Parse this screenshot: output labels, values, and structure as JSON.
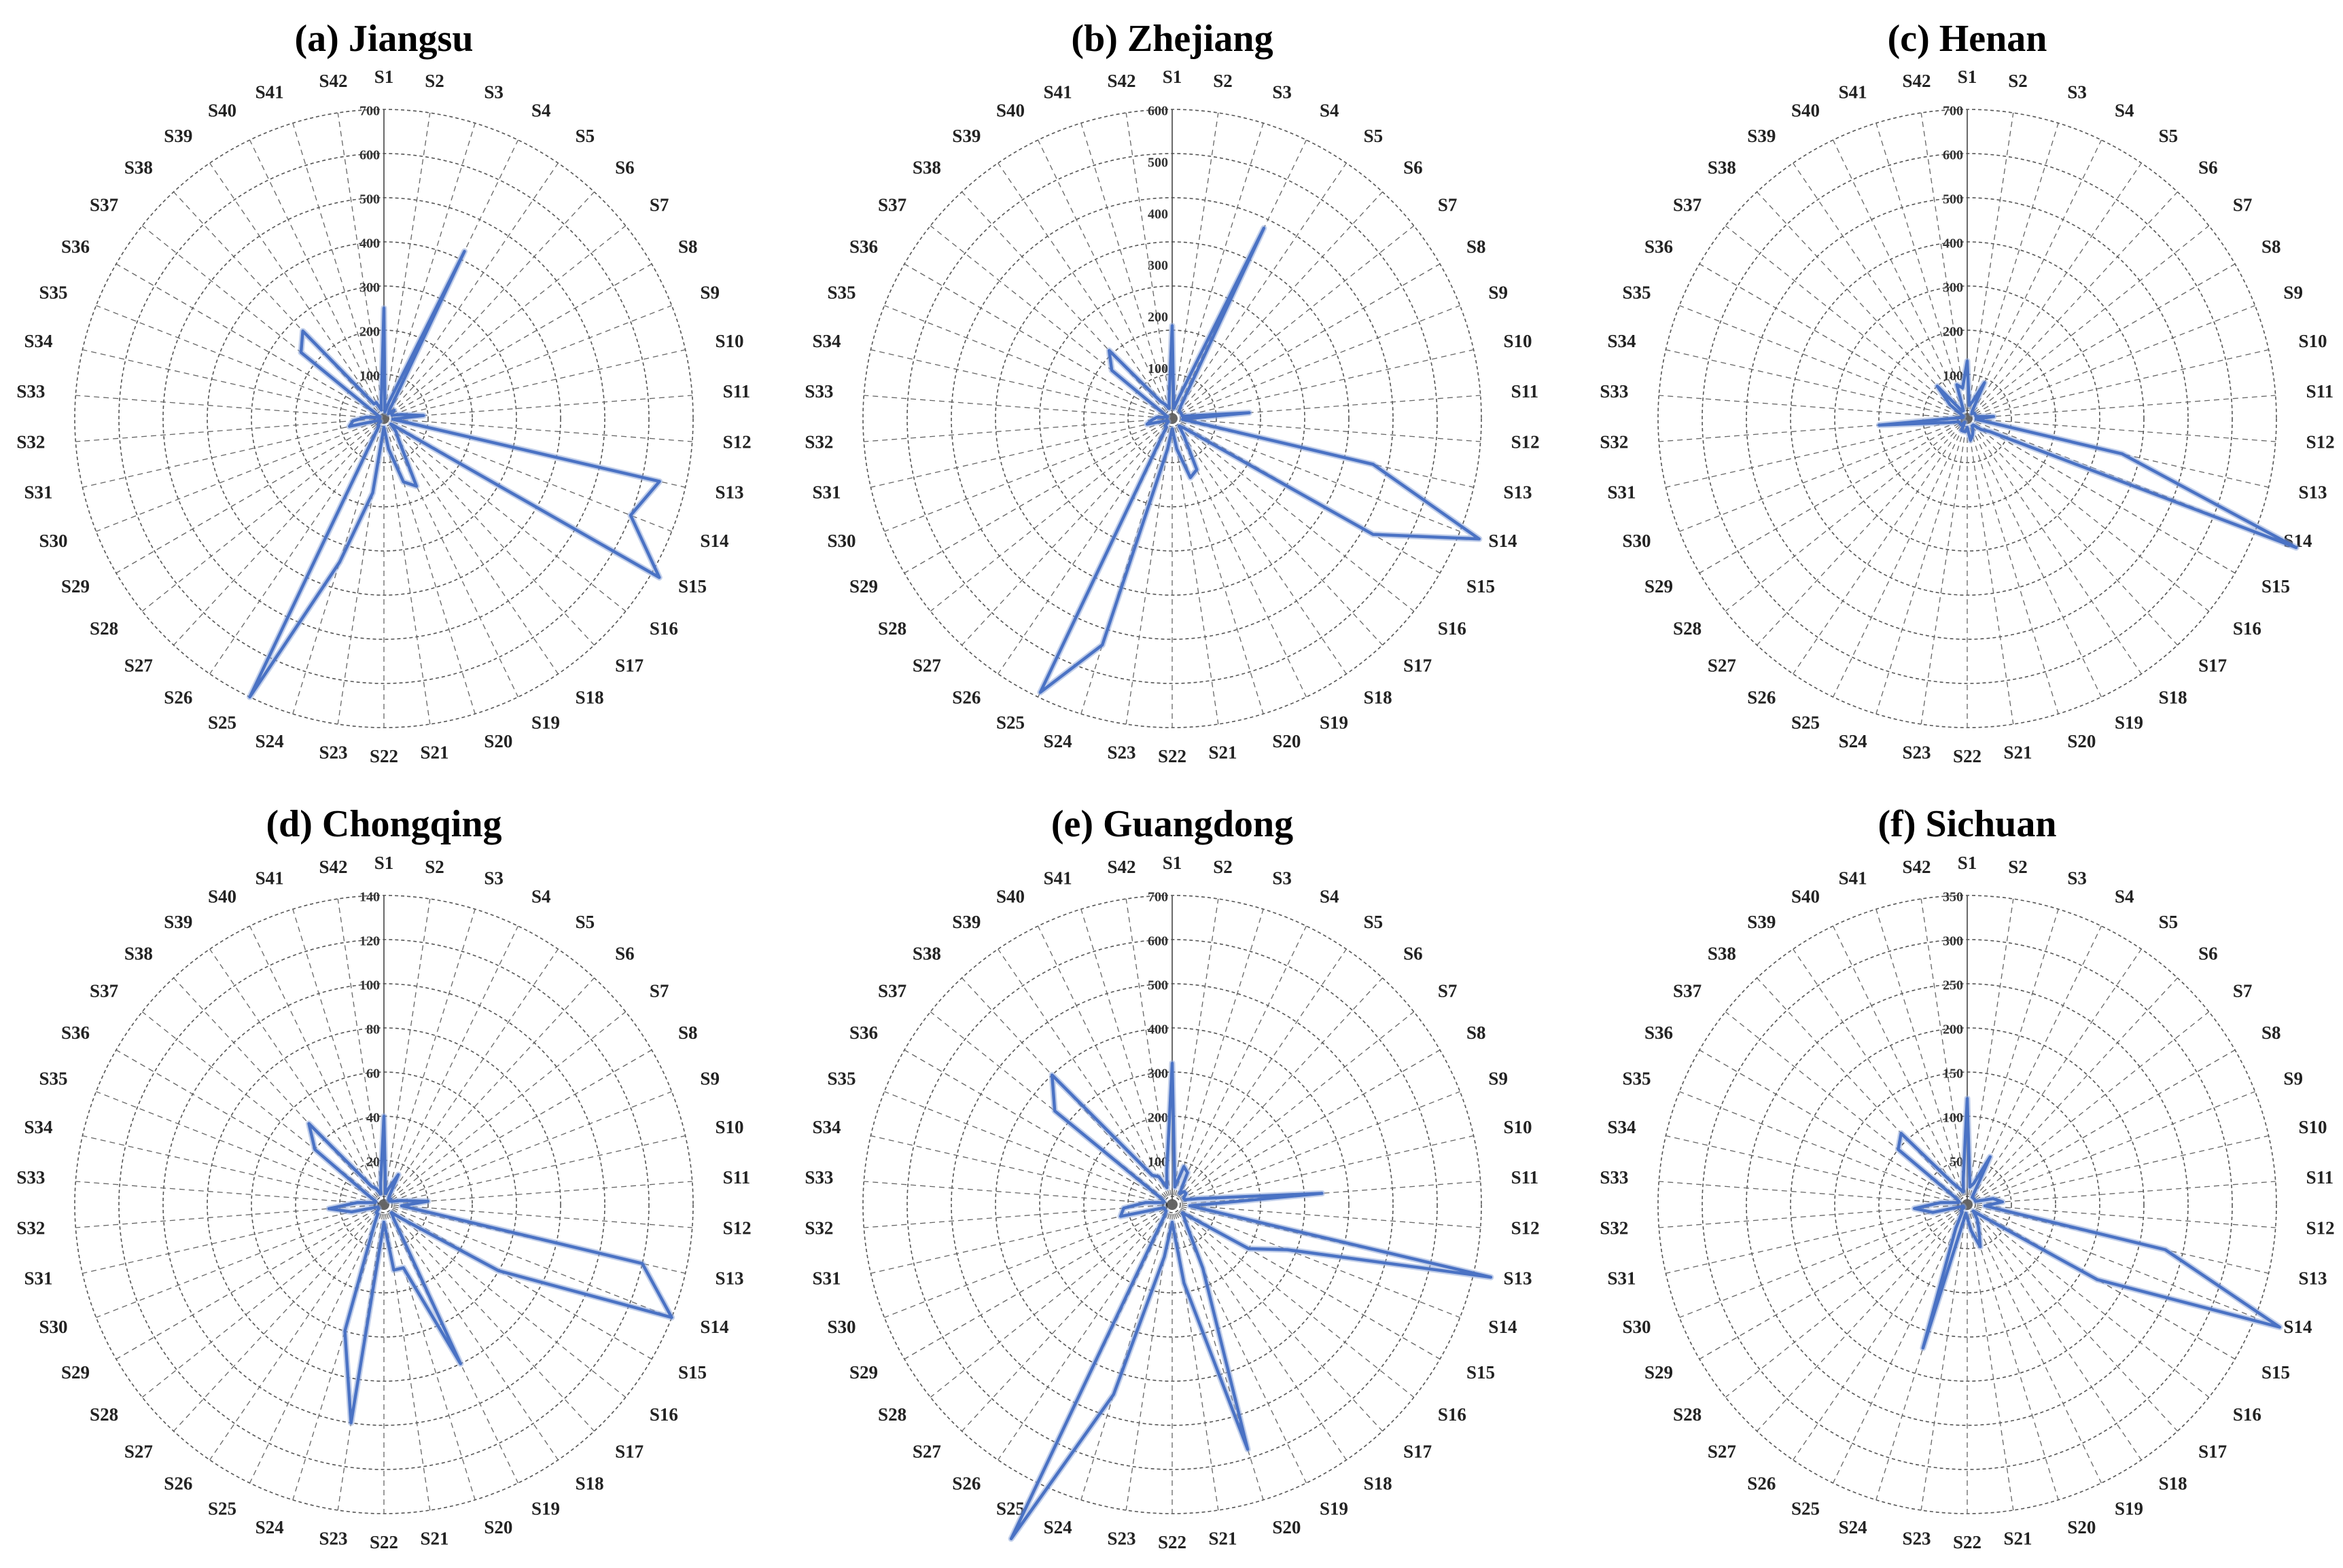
{
  "chart_data": [
    {
      "type": "radar",
      "title": "(a) Jiangsu",
      "categories": [
        "S1",
        "S2",
        "S3",
        "S4",
        "S5",
        "S6",
        "S7",
        "S8",
        "S9",
        "S10",
        "S11",
        "S12",
        "S13",
        "S14",
        "S15",
        "S16",
        "S17",
        "S18",
        "S19",
        "S20",
        "S21",
        "S22",
        "S23",
        "S24",
        "S25",
        "S26",
        "S27",
        "S28",
        "S29",
        "S30",
        "S31",
        "S32",
        "S33",
        "S34",
        "S35",
        "S36",
        "S37",
        "S38",
        "S39",
        "S40",
        "S41",
        "S42"
      ],
      "rlim": [
        0,
        700
      ],
      "ticks": [
        0,
        100,
        200,
        300,
        400,
        500,
        600,
        700
      ],
      "values": [
        250,
        15,
        40,
        420,
        20,
        15,
        30,
        20,
        20,
        40,
        90,
        20,
        640,
        600,
        720,
        20,
        40,
        60,
        170,
        150,
        70,
        20,
        170,
        340,
        700,
        20,
        20,
        10,
        10,
        10,
        80,
        70,
        40,
        10,
        10,
        20,
        240,
        270,
        40,
        40,
        20,
        40
      ]
    },
    {
      "type": "radar",
      "title": "(b) Zhejiang",
      "categories": [
        "S1",
        "S2",
        "S3",
        "S4",
        "S5",
        "S6",
        "S7",
        "S8",
        "S9",
        "S10",
        "S11",
        "S12",
        "S13",
        "S14",
        "S15",
        "S16",
        "S17",
        "S18",
        "S19",
        "S20",
        "S21",
        "S22",
        "S23",
        "S24",
        "S25",
        "S26",
        "S27",
        "S28",
        "S29",
        "S30",
        "S31",
        "S32",
        "S33",
        "S34",
        "S35",
        "S36",
        "S37",
        "S38",
        "S39",
        "S40",
        "S41",
        "S42"
      ],
      "rlim": [
        0,
        600
      ],
      "ticks": [
        0,
        100,
        200,
        300,
        400,
        500,
        600
      ],
      "values": [
        180,
        20,
        40,
        410,
        30,
        20,
        20,
        20,
        20,
        20,
        150,
        20,
        400,
        640,
        450,
        30,
        20,
        40,
        110,
        120,
        60,
        20,
        60,
        460,
        590,
        20,
        20,
        10,
        10,
        10,
        50,
        40,
        30,
        10,
        10,
        20,
        150,
        180,
        40,
        30,
        20,
        40
      ]
    },
    {
      "type": "radar",
      "title": "(c) Henan",
      "categories": [
        "S1",
        "S2",
        "S3",
        "S4",
        "S5",
        "S6",
        "S7",
        "S8",
        "S9",
        "S10",
        "S11",
        "S12",
        "S13",
        "S14",
        "S15",
        "S16",
        "S17",
        "S18",
        "S19",
        "S20",
        "S21",
        "S22",
        "S23",
        "S24",
        "S25",
        "S26",
        "S27",
        "S28",
        "S29",
        "S30",
        "S31",
        "S32",
        "S33",
        "S34",
        "S35",
        "S36",
        "S37",
        "S38",
        "S39",
        "S40",
        "S41",
        "S42"
      ],
      "rlim": [
        0,
        700
      ],
      "ticks": [
        0,
        100,
        200,
        300,
        400,
        500,
        600,
        700
      ],
      "values": [
        130,
        30,
        40,
        90,
        20,
        15,
        20,
        20,
        20,
        20,
        60,
        20,
        360,
        800,
        60,
        40,
        20,
        20,
        30,
        40,
        50,
        20,
        30,
        30,
        30,
        10,
        20,
        20,
        20,
        20,
        40,
        200,
        20,
        10,
        10,
        10,
        50,
        100,
        20,
        20,
        80,
        70
      ]
    },
    {
      "type": "radar",
      "title": "(d) Chongqing",
      "categories": [
        "S1",
        "S2",
        "S3",
        "S4",
        "S5",
        "S6",
        "S7",
        "S8",
        "S9",
        "S10",
        "S11",
        "S12",
        "S13",
        "S14",
        "S15",
        "S16",
        "S17",
        "S18",
        "S19",
        "S20",
        "S21",
        "S22",
        "S23",
        "S24",
        "S25",
        "S26",
        "S27",
        "S28",
        "S29",
        "S30",
        "S31",
        "S32",
        "S33",
        "S34",
        "S35",
        "S36",
        "S37",
        "S38",
        "S39",
        "S40",
        "S41",
        "S42"
      ],
      "rlim": [
        0,
        140
      ],
      "ticks": [
        0,
        20,
        40,
        60,
        80,
        100,
        120,
        140
      ],
      "values": [
        40,
        5,
        8,
        15,
        4,
        3,
        4,
        3,
        4,
        8,
        20,
        8,
        120,
        140,
        60,
        10,
        5,
        8,
        80,
        30,
        30,
        8,
        100,
        60,
        10,
        5,
        5,
        3,
        3,
        3,
        15,
        25,
        12,
        4,
        4,
        8,
        40,
        50,
        10,
        8,
        5,
        10
      ]
    },
    {
      "type": "radar",
      "title": "(e) Guangdong",
      "categories": [
        "S1",
        "S2",
        "S3",
        "S4",
        "S5",
        "S6",
        "S7",
        "S8",
        "S9",
        "S10",
        "S11",
        "S12",
        "S13",
        "S14",
        "S15",
        "S16",
        "S17",
        "S18",
        "S19",
        "S20",
        "S21",
        "S22",
        "S23",
        "S24",
        "S25",
        "S26",
        "S27",
        "S28",
        "S29",
        "S30",
        "S31",
        "S32",
        "S33",
        "S34",
        "S35",
        "S36",
        "S37",
        "S38",
        "S39",
        "S40",
        "S41",
        "S42"
      ],
      "rlim": [
        0,
        700
      ],
      "ticks": [
        0,
        100,
        200,
        300,
        400,
        500,
        600,
        700
      ],
      "values": [
        320,
        40,
        90,
        80,
        30,
        40,
        40,
        30,
        30,
        60,
        340,
        40,
        740,
        280,
        200,
        30,
        40,
        60,
        160,
        580,
        180,
        40,
        120,
        450,
        840,
        30,
        20,
        20,
        20,
        20,
        120,
        110,
        60,
        20,
        20,
        30,
        340,
        400,
        80,
        70,
        40,
        80
      ]
    },
    {
      "type": "radar",
      "title": "(f) Sichuan",
      "categories": [
        "S1",
        "S2",
        "S3",
        "S4",
        "S5",
        "S6",
        "S7",
        "S8",
        "S9",
        "S10",
        "S11",
        "S12",
        "S13",
        "S14",
        "S15",
        "S16",
        "S17",
        "S18",
        "S19",
        "S20",
        "S21",
        "S22",
        "S23",
        "S24",
        "S25",
        "S26",
        "S27",
        "S28",
        "S29",
        "S30",
        "S31",
        "S32",
        "S33",
        "S34",
        "S35",
        "S36",
        "S37",
        "S38",
        "S39",
        "S40",
        "S41",
        "S42"
      ],
      "rlim": [
        0,
        350
      ],
      "ticks": [
        0,
        50,
        100,
        150,
        200,
        250,
        300,
        350
      ],
      "values": [
        120,
        20,
        25,
        60,
        10,
        10,
        10,
        10,
        10,
        30,
        40,
        20,
        230,
        380,
        170,
        20,
        10,
        20,
        30,
        50,
        30,
        15,
        10,
        170,
        30,
        10,
        10,
        5,
        5,
        5,
        40,
        60,
        30,
        10,
        10,
        15,
        100,
        110,
        30,
        20,
        15,
        30
      ]
    }
  ]
}
